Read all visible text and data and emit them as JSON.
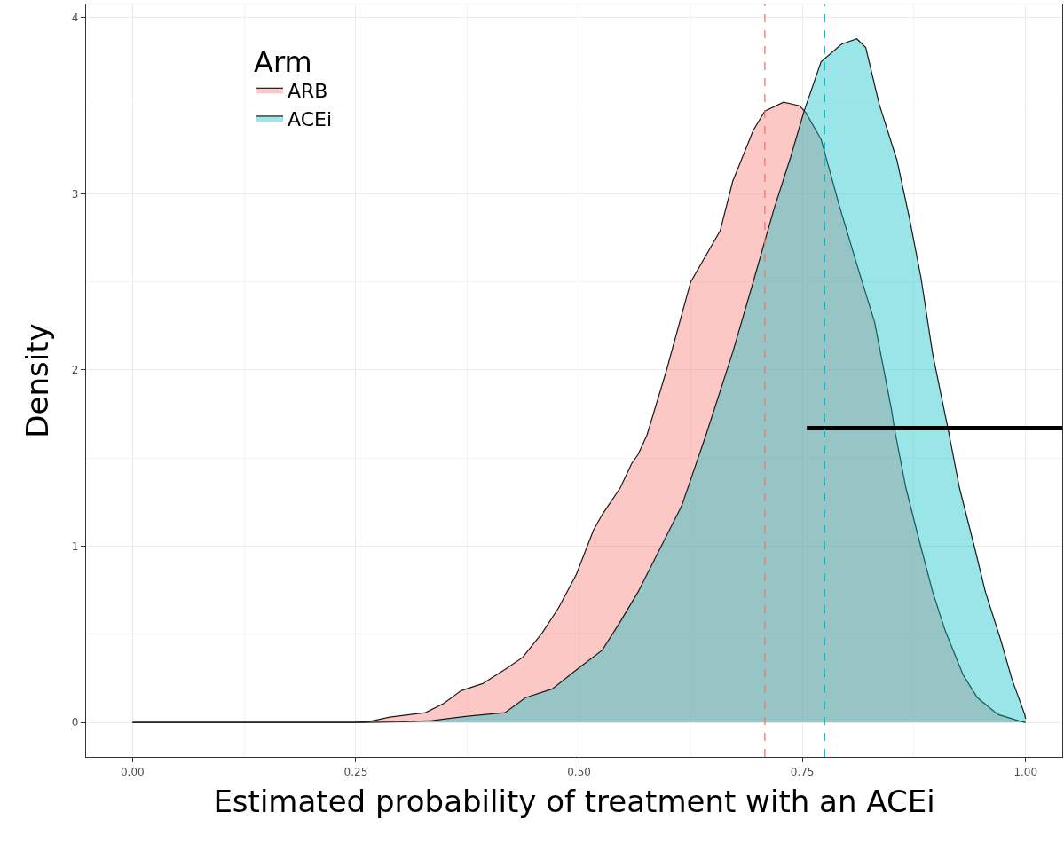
{
  "chart_data": {
    "type": "area",
    "xlabel": "Estimated probability of treatment with an ACEi",
    "ylabel": "Density",
    "legend_title": "Arm",
    "legend": "top left",
    "grid": true,
    "xlim": [
      -0.052,
      1.041
    ],
    "ylim": [
      -0.196,
      4.075
    ],
    "xticks": [
      {
        "value": 0,
        "label": "0.00"
      },
      {
        "value": 0.25,
        "label": "0.25"
      },
      {
        "value": 0.5,
        "label": "0.50"
      },
      {
        "value": 0.75,
        "label": "0.75"
      },
      {
        "value": 1,
        "label": "1.00"
      }
    ],
    "yticks": [
      0,
      1,
      2,
      3,
      4
    ],
    "series": [
      {
        "name": "ARB",
        "color": "#f8766d",
        "x": [
          0,
          0.1,
          0.2,
          0.249,
          0.265,
          0.288,
          0.328,
          0.348,
          0.368,
          0.392,
          0.417,
          0.437,
          0.459,
          0.477,
          0.497,
          0.516,
          0.526,
          0.546,
          0.559,
          0.566,
          0.576,
          0.598,
          0.625,
          0.658,
          0.672,
          0.695,
          0.708,
          0.729,
          0.747,
          0.754,
          0.771,
          0.791,
          0.811,
          0.831,
          0.85,
          0.853,
          0.866,
          0.883,
          0.896,
          0.91,
          0.93,
          0.946,
          0.969,
          0.995,
          1.0
        ],
        "values": [
          0,
          0,
          0,
          0,
          0.005,
          0.03,
          0.055,
          0.106,
          0.18,
          0.22,
          0.3,
          0.37,
          0.51,
          0.65,
          0.84,
          1.09,
          1.18,
          1.33,
          1.47,
          1.52,
          1.63,
          2.0,
          2.5,
          2.79,
          3.07,
          3.36,
          3.47,
          3.52,
          3.5,
          3.46,
          3.31,
          2.94,
          2.6,
          2.27,
          1.77,
          1.67,
          1.33,
          0.99,
          0.74,
          0.52,
          0.27,
          0.14,
          0.045,
          0.005,
          0
        ]
      },
      {
        "name": "ACEi",
        "color": "#00bfc4",
        "x": [
          0,
          0.1,
          0.2,
          0.26,
          0.3,
          0.335,
          0.375,
          0.417,
          0.44,
          0.47,
          0.5,
          0.526,
          0.546,
          0.566,
          0.615,
          0.642,
          0.672,
          0.695,
          0.718,
          0.737,
          0.752,
          0.771,
          0.794,
          0.811,
          0.821,
          0.836,
          0.856,
          0.87,
          0.883,
          0.896,
          0.913,
          0.926,
          0.943,
          0.955,
          0.972,
          0.985,
          0.999,
          1.0
        ],
        "values": [
          0,
          0,
          0,
          0,
          0.003,
          0.01,
          0.035,
          0.055,
          0.14,
          0.19,
          0.31,
          0.41,
          0.57,
          0.74,
          1.23,
          1.63,
          2.1,
          2.5,
          2.91,
          3.21,
          3.47,
          3.75,
          3.85,
          3.88,
          3.83,
          3.51,
          3.19,
          2.86,
          2.52,
          2.09,
          1.67,
          1.33,
          0.99,
          0.74,
          0.47,
          0.24,
          0.045,
          0.02
        ]
      },
      {
        "type": "line",
        "color": "#000000",
        "x": [
          0.755,
          1.041
        ],
        "values": [
          1.67,
          1.67
        ]
      }
    ],
    "ref_lines": [
      {
        "axis": "x",
        "value": 0.708,
        "color": "#f8766d",
        "line_style": "dashed"
      },
      {
        "axis": "x",
        "value": 0.775,
        "color": "#00bfc4",
        "line_style": "dashed"
      }
    ]
  }
}
